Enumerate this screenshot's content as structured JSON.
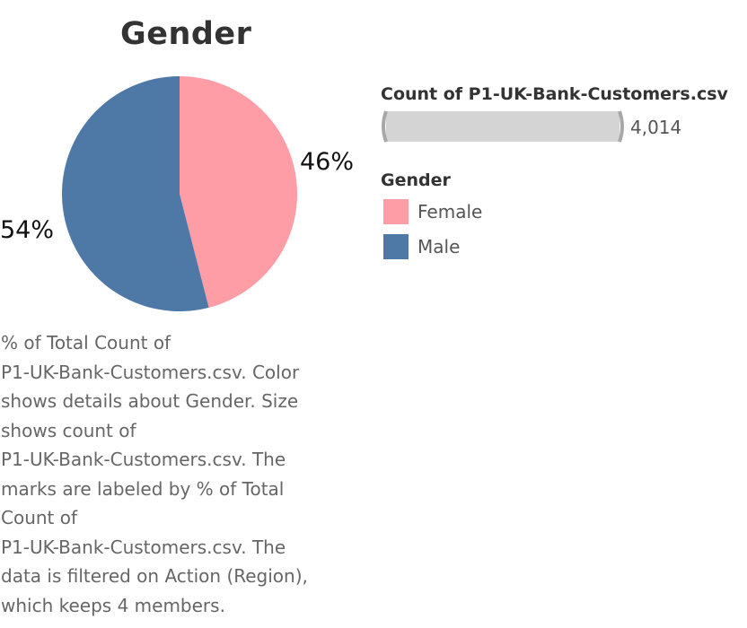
{
  "chart_data": {
    "type": "pie",
    "title": "Gender",
    "categories": [
      "Female",
      "Male"
    ],
    "values": [
      46,
      54
    ],
    "labels": [
      "46%",
      "54%"
    ],
    "colors": [
      "#FF9DA7",
      "#4E79A7"
    ],
    "legend": {
      "title": "Gender",
      "position": "right",
      "items": [
        {
          "label": "Female",
          "color": "#FF9DA7"
        },
        {
          "label": "Male",
          "color": "#4E79A7"
        }
      ]
    },
    "size_legend": {
      "title": "Count of P1-UK-Bank-Customers.csv",
      "value": "4,014"
    }
  },
  "caption": "% of Total Count of\nP1-UK-Bank-Customers.csv.  Color\nshows details about Gender.  Size\nshows count of\nP1-UK-Bank-Customers.csv.  The\nmarks are labeled by % of Total\nCount of\nP1-UK-Bank-Customers.csv. The\ndata is filtered on Action (Region),\nwhich keeps 4 members."
}
